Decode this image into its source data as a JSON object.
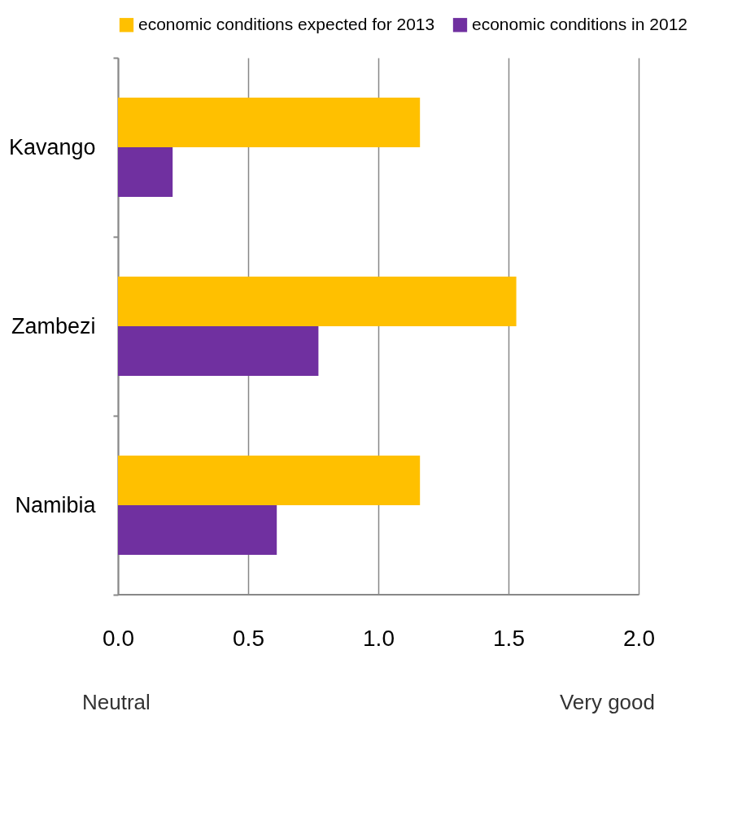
{
  "chart_data": {
    "type": "bar",
    "orientation": "horizontal",
    "categories": [
      "Kavango",
      "Zambezi",
      "Namibia"
    ],
    "series": [
      {
        "name": "economic conditions expected for 2013",
        "color": "#ffc000",
        "values": [
          1.16,
          1.53,
          1.16
        ]
      },
      {
        "name": "economic conditions in 2012",
        "color": "#7030a0",
        "values": [
          0.21,
          0.77,
          0.61
        ]
      }
    ],
    "xlim": [
      0,
      2
    ],
    "xticks": [
      {
        "value": 0,
        "label": "0.0"
      },
      {
        "value": 0.5,
        "label": "0.5"
      },
      {
        "value": 1,
        "label": "1.0"
      },
      {
        "value": 1.5,
        "label": "1.5"
      },
      {
        "value": 2,
        "label": "2.0"
      }
    ],
    "grid": "x",
    "legend": "top",
    "annotations": [
      "Neutral",
      "Very good"
    ]
  }
}
